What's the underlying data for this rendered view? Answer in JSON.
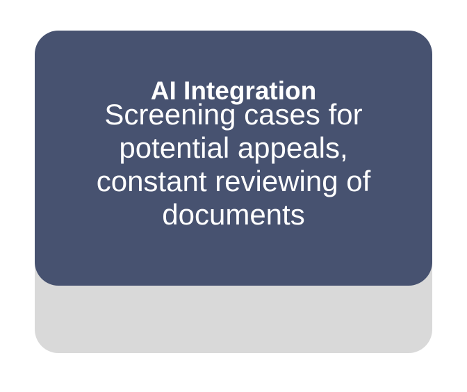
{
  "card": {
    "title": "AI Integration",
    "body": "Screening cases for potential appeals, constant reviewing of documents"
  },
  "colors": {
    "card_fill": "#475270",
    "shadow_fill": "#d9d9d9",
    "text": "#ffffff"
  }
}
